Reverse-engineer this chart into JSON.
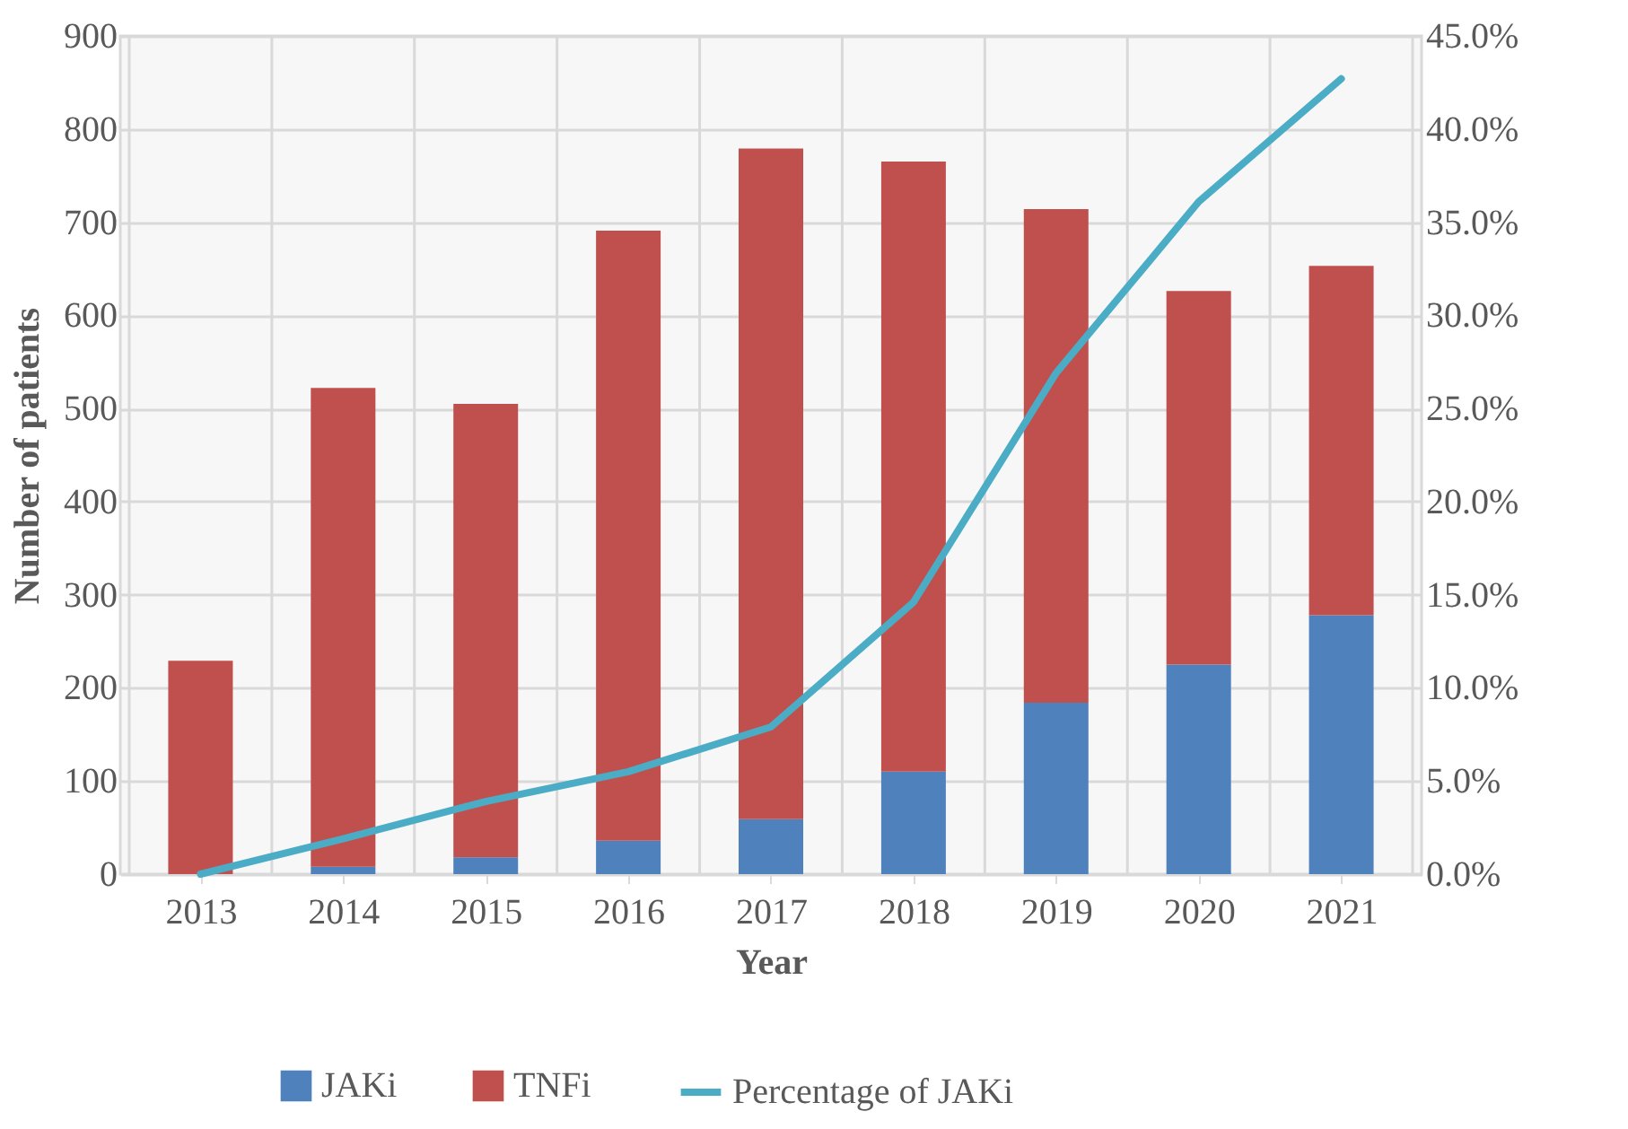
{
  "chart_data": {
    "type": "bar",
    "stacked": true,
    "xlabel": "Year",
    "ylabel": "Number of patients",
    "categories": [
      "2013",
      "2014",
      "2015",
      "2016",
      "2017",
      "2018",
      "2019",
      "2020",
      "2021"
    ],
    "series": [
      {
        "name": "JAKi",
        "color": "#4f81bd",
        "values": [
          0,
          8,
          18,
          36,
          59,
          110,
          184,
          225,
          278
        ]
      },
      {
        "name": "TNFi",
        "color": "#c0504d",
        "values": [
          229,
          514,
          487,
          655,
          720,
          655,
          530,
          401,
          375
        ]
      },
      {
        "name": "Percentage of JAKi",
        "type": "line",
        "axis": "y2",
        "color": "#4bacc6",
        "values": [
          0,
          1.9,
          3.9,
          5.5,
          7.9,
          14.6,
          26.9,
          36.1,
          42.7
        ]
      }
    ],
    "ylim": [
      0,
      900
    ],
    "yticks": [
      0,
      100,
      200,
      300,
      400,
      500,
      600,
      700,
      800,
      900
    ],
    "y2lim": [
      0,
      45
    ],
    "y2ticks": [
      {
        "value": 0,
        "label": "0.0%"
      },
      {
        "value": 5,
        "label": "5.0%"
      },
      {
        "value": 10,
        "label": "10.0%"
      },
      {
        "value": 15,
        "label": "15.0%"
      },
      {
        "value": 20,
        "label": "20.0%"
      },
      {
        "value": 25,
        "label": "25.0%"
      },
      {
        "value": 30,
        "label": "30.0%"
      },
      {
        "value": 35,
        "label": "35.0%"
      },
      {
        "value": 40,
        "label": "40.0%"
      },
      {
        "value": 45,
        "label": "45.0%"
      }
    ],
    "grid": true,
    "legend": "bottom",
    "marker": "none",
    "line_style": "solid"
  }
}
